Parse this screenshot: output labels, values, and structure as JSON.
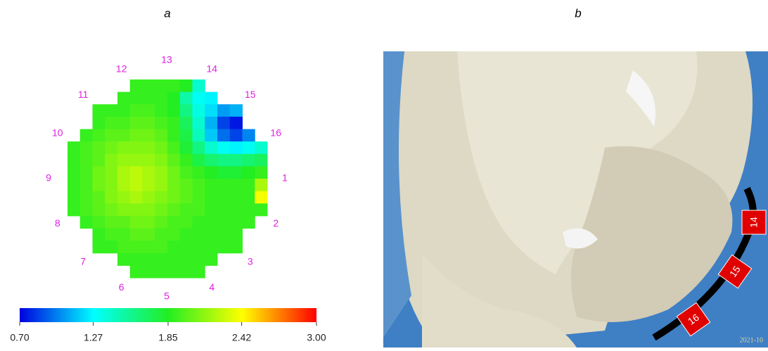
{
  "panel_labels": [
    "a",
    "b"
  ],
  "chart_data": {
    "type": "heatmap",
    "values": [
      [
        null,
        null,
        null,
        null,
        null,
        1.9,
        1.9,
        1.9,
        1.9,
        1.85,
        1.4,
        null,
        null,
        null,
        null,
        null
      ],
      [
        null,
        null,
        null,
        null,
        1.9,
        1.9,
        1.9,
        1.9,
        1.85,
        1.5,
        1.3,
        1.25,
        null,
        null,
        null,
        null
      ],
      [
        null,
        null,
        1.9,
        1.9,
        1.9,
        1.95,
        1.95,
        1.9,
        1.85,
        1.6,
        1.35,
        1.2,
        1.05,
        1.1,
        null,
        null
      ],
      [
        null,
        null,
        1.9,
        1.95,
        1.95,
        2.0,
        2.0,
        1.95,
        1.9,
        1.7,
        1.4,
        1.1,
        0.85,
        0.75,
        null,
        null
      ],
      [
        null,
        1.9,
        1.95,
        2.0,
        2.0,
        2.05,
        2.05,
        2.0,
        1.9,
        1.75,
        1.45,
        1.15,
        0.95,
        0.85,
        1.0,
        null
      ],
      [
        1.9,
        1.95,
        2.0,
        2.05,
        2.1,
        2.1,
        2.1,
        2.05,
        1.95,
        1.8,
        1.6,
        1.4,
        1.3,
        1.25,
        1.3,
        1.4
      ],
      [
        1.9,
        1.95,
        2.0,
        2.1,
        2.15,
        2.15,
        2.15,
        2.1,
        2.0,
        1.9,
        1.75,
        1.65,
        1.6,
        1.6,
        1.65,
        1.7
      ],
      [
        1.9,
        1.95,
        2.05,
        2.1,
        2.2,
        2.25,
        2.2,
        2.15,
        2.05,
        1.95,
        1.9,
        1.85,
        1.8,
        1.8,
        1.85,
        1.9
      ],
      [
        1.9,
        1.95,
        2.05,
        2.1,
        2.2,
        2.25,
        2.2,
        2.15,
        2.05,
        2.0,
        1.95,
        1.9,
        1.9,
        1.9,
        1.9,
        2.2
      ],
      [
        1.9,
        1.95,
        2.0,
        2.1,
        2.15,
        2.2,
        2.15,
        2.1,
        2.05,
        2.0,
        1.95,
        1.9,
        1.9,
        1.9,
        1.9,
        2.4
      ],
      [
        1.9,
        1.95,
        2.0,
        2.05,
        2.1,
        2.1,
        2.1,
        2.05,
        2.0,
        1.95,
        1.95,
        1.9,
        1.9,
        1.9,
        1.9,
        1.9
      ],
      [
        null,
        1.9,
        1.95,
        2.0,
        2.0,
        2.05,
        2.05,
        2.0,
        1.95,
        1.95,
        1.9,
        1.9,
        1.9,
        1.9,
        1.9,
        null
      ],
      [
        null,
        null,
        1.9,
        1.95,
        1.95,
        2.0,
        2.0,
        1.95,
        1.95,
        1.9,
        1.9,
        1.9,
        1.9,
        1.9,
        null,
        null
      ],
      [
        null,
        null,
        1.9,
        1.9,
        1.95,
        1.95,
        1.95,
        1.95,
        1.9,
        1.9,
        1.9,
        1.9,
        1.9,
        1.9,
        null,
        null
      ],
      [
        null,
        null,
        null,
        null,
        1.9,
        1.9,
        1.9,
        1.9,
        1.9,
        1.9,
        1.9,
        1.9,
        null,
        null,
        null,
        null
      ],
      [
        null,
        null,
        null,
        null,
        null,
        1.9,
        1.9,
        1.9,
        1.9,
        1.9,
        1.9,
        null,
        null,
        null,
        null,
        null
      ]
    ],
    "electrodes": [
      "1",
      "2",
      "3",
      "4",
      "5",
      "6",
      "7",
      "8",
      "9",
      "10",
      "11",
      "12",
      "13",
      "14",
      "15",
      "16"
    ],
    "electrode_color": "#e020e0",
    "colorscale": [
      "#0000e0",
      "#00ffff",
      "#22ee22",
      "#ffff00",
      "#ff0000"
    ],
    "clim": [
      0.7,
      3.0
    ],
    "cticks": [
      {
        "value": 0.7,
        "label": "0.70"
      },
      1.27,
      1.85,
      2.42,
      {
        "value": 3.0,
        "label": "3.00"
      }
    ]
  },
  "photo": {
    "markers": [
      "14",
      "15",
      "16"
    ],
    "timestamp": "2021-10"
  }
}
